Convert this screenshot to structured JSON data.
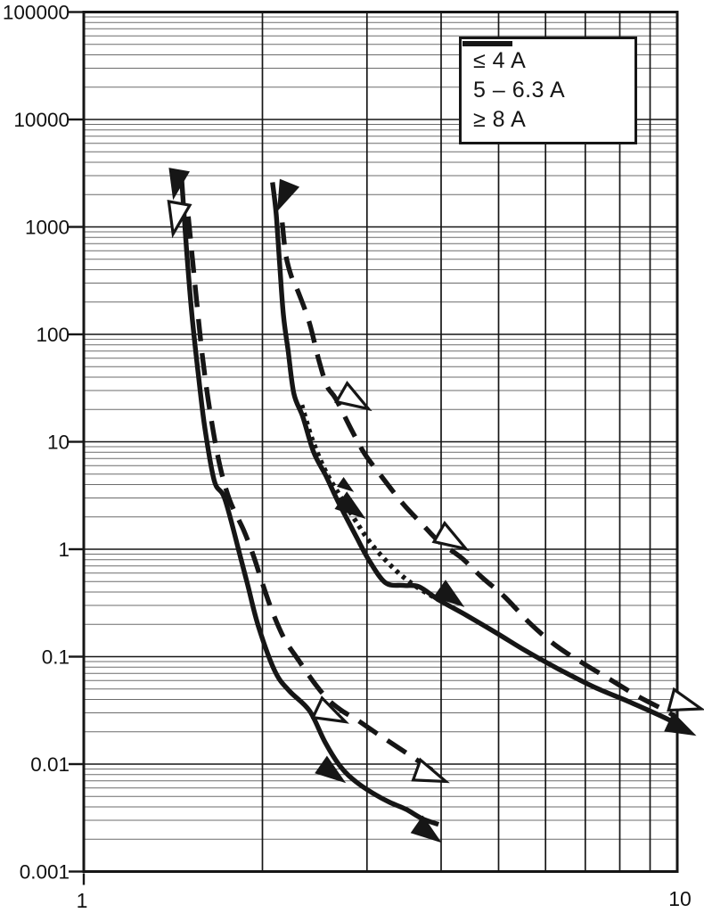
{
  "legend": {
    "items": [
      {
        "label": "≤ 4 A",
        "style": "solid"
      },
      {
        "label": "5 – 6.3 A",
        "style": "dotted"
      },
      {
        "label": "≥ 8 A",
        "style": "dashed"
      }
    ]
  },
  "chart_data": {
    "type": "line",
    "x_scale": "log",
    "y_scale": "log",
    "xlim": [
      1,
      10
    ],
    "ylim": [
      0.001,
      100000
    ],
    "x_tick_labels": [
      "1",
      "10"
    ],
    "y_tick_labels": [
      "100000",
      "10000",
      "1000",
      "100",
      "10",
      "1",
      "0.1",
      "0.01",
      "0.001"
    ],
    "grid": true,
    "legend_position": "top-right",
    "line_color": "#161616",
    "series": [
      {
        "name": "≤ 4 A",
        "style": "solid",
        "branch": "left",
        "points": [
          [
            1.46,
            3100
          ],
          [
            1.49,
            620
          ],
          [
            1.52,
            160
          ],
          [
            1.56,
            42
          ],
          [
            1.6,
            13.4
          ],
          [
            1.66,
            4.3
          ],
          [
            1.73,
            2.9
          ],
          [
            1.84,
            0.81
          ],
          [
            1.89,
            0.46
          ],
          [
            1.97,
            0.19
          ],
          [
            2.1,
            0.073
          ],
          [
            2.22,
            0.048
          ],
          [
            2.4,
            0.0315
          ],
          [
            2.55,
            0.016
          ],
          [
            2.71,
            0.0094
          ],
          [
            2.88,
            0.0068
          ],
          [
            3.08,
            0.0053
          ],
          [
            3.28,
            0.0044
          ],
          [
            3.49,
            0.0038
          ],
          [
            3.72,
            0.0031
          ],
          [
            3.96,
            0.00275
          ]
        ]
      },
      {
        "name": "≥ 8 A",
        "style": "dashed",
        "branch": "left",
        "points": [
          [
            1.5,
            1250
          ],
          [
            1.545,
            240
          ],
          [
            1.585,
            62
          ],
          [
            1.63,
            20
          ],
          [
            1.69,
            6.5
          ],
          [
            1.76,
            2.9
          ],
          [
            1.86,
            1.5
          ],
          [
            1.93,
            0.88
          ],
          [
            2.0,
            0.48
          ],
          [
            2.08,
            0.26
          ],
          [
            2.18,
            0.145
          ],
          [
            2.3,
            0.093
          ],
          [
            2.44,
            0.058
          ],
          [
            2.58,
            0.04
          ],
          [
            2.72,
            0.0315
          ],
          [
            2.88,
            0.026
          ],
          [
            3.13,
            0.019
          ],
          [
            3.51,
            0.0125
          ],
          [
            3.86,
            0.0088
          ]
        ]
      },
      {
        "name": "≤ 4 A",
        "style": "solid",
        "branch": "right",
        "points": [
          [
            2.08,
            2600
          ],
          [
            2.11,
            1300
          ],
          [
            2.14,
            420
          ],
          [
            2.17,
            150
          ],
          [
            2.21,
            70
          ],
          [
            2.26,
            28
          ],
          [
            2.34,
            17
          ],
          [
            2.44,
            8.0
          ],
          [
            2.56,
            4.8
          ],
          [
            2.68,
            2.8
          ],
          [
            2.88,
            1.3
          ],
          [
            3.02,
            0.8
          ],
          [
            3.22,
            0.49
          ],
          [
            3.45,
            0.46
          ],
          [
            3.67,
            0.448
          ],
          [
            3.97,
            0.336
          ],
          [
            4.41,
            0.243
          ],
          [
            4.96,
            0.166
          ],
          [
            5.56,
            0.113
          ],
          [
            6.3,
            0.077
          ],
          [
            7.25,
            0.052
          ],
          [
            8.3,
            0.038
          ],
          [
            9.66,
            0.026
          ],
          [
            10.0,
            0.0223
          ]
        ]
      },
      {
        "name": "5 – 6.3 A",
        "style": "dotted",
        "branch": "right",
        "points": [
          [
            2.33,
            22
          ],
          [
            2.42,
            11
          ],
          [
            2.54,
            5.7
          ],
          [
            2.67,
            3.5
          ],
          [
            2.86,
            1.9
          ],
          [
            3.06,
            1.1
          ],
          [
            3.34,
            0.65
          ],
          [
            3.63,
            0.45
          ],
          [
            3.97,
            0.336
          ]
        ]
      },
      {
        "name": "≥ 8 A",
        "style": "dashed",
        "branch": "right",
        "points": [
          [
            2.16,
            1100
          ],
          [
            2.19,
            550
          ],
          [
            2.24,
            340
          ],
          [
            2.3,
            245
          ],
          [
            2.4,
            128
          ],
          [
            2.49,
            57
          ],
          [
            2.57,
            33
          ],
          [
            2.66,
            25
          ],
          [
            2.83,
            12.7
          ],
          [
            2.98,
            7.6
          ],
          [
            3.2,
            4.5
          ],
          [
            3.45,
            2.65
          ],
          [
            3.72,
            1.7
          ],
          [
            3.98,
            1.16
          ],
          [
            4.32,
            0.84
          ],
          [
            4.7,
            0.54
          ],
          [
            5.12,
            0.36
          ],
          [
            5.67,
            0.2
          ],
          [
            6.28,
            0.124
          ],
          [
            6.98,
            0.085
          ],
          [
            7.72,
            0.061
          ],
          [
            8.57,
            0.043
          ],
          [
            9.5,
            0.032
          ],
          [
            10.0,
            0.027
          ]
        ]
      }
    ],
    "markers": [
      {
        "x": 1.43,
        "t": 2540,
        "angle": 100,
        "filled": true,
        "size": 1
      },
      {
        "x": 1.43,
        "t": 1230,
        "angle": 100,
        "filled": false,
        "size": 1
      },
      {
        "x": 2.17,
        "t": 1950,
        "angle": 112,
        "filled": true,
        "size": 1
      },
      {
        "x": 2.85,
        "t": 24.3,
        "angle": 30,
        "filled": false,
        "size": 1
      },
      {
        "x": 2.77,
        "t": 3.82,
        "angle": 35,
        "filled": true,
        "size": 0.55
      },
      {
        "x": 2.83,
        "t": 2.36,
        "angle": 35,
        "filled": true,
        "size": 1
      },
      {
        "x": 4.16,
        "t": 1.21,
        "angle": 30,
        "filled": false,
        "size": 1
      },
      {
        "x": 4.15,
        "t": 0.356,
        "angle": 35,
        "filled": true,
        "size": 1
      },
      {
        "x": 2.6,
        "t": 0.0289,
        "angle": 25,
        "filled": false,
        "size": 1
      },
      {
        "x": 2.62,
        "t": 0.0082,
        "angle": 35,
        "filled": true,
        "size": 1
      },
      {
        "x": 3.83,
        "t": 0.0078,
        "angle": 20,
        "filled": false,
        "size": 1
      },
      {
        "x": 3.8,
        "t": 0.00228,
        "angle": 35,
        "filled": true,
        "size": 1
      },
      {
        "x": 10.3,
        "t": 0.0359,
        "angle": 15,
        "filled": false,
        "size": 1
      },
      {
        "x": 10.15,
        "t": 0.0214,
        "angle": 25,
        "filled": true,
        "size": 1
      }
    ]
  }
}
